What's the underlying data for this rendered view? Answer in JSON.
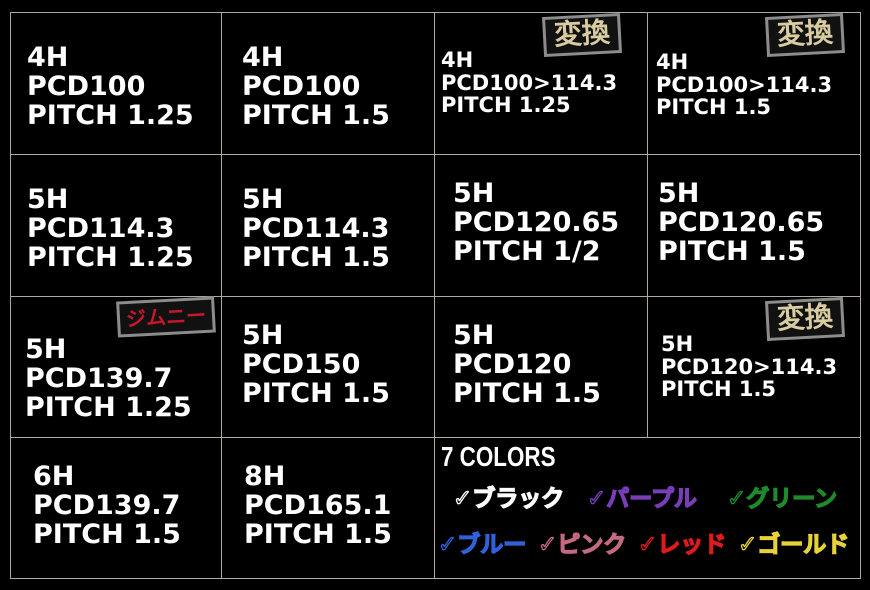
{
  "cells": [
    {
      "h": "4H",
      "pcd": "PCD100",
      "pitch": "PITCH 1.25"
    },
    {
      "h": "4H",
      "pcd": "PCD100",
      "pitch": "PITCH 1.5"
    },
    {
      "h": "4H",
      "pcd": "PCD100>114.3",
      "pitch": "PITCH 1.25",
      "badge": "変換"
    },
    {
      "h": "4H",
      "pcd": "PCD100>114.3",
      "pitch": "PITCH 1.5",
      "badge": "変換"
    },
    {
      "h": "5H",
      "pcd": "PCD114.3",
      "pitch": "PITCH 1.25"
    },
    {
      "h": "5H",
      "pcd": "PCD114.3",
      "pitch": "PITCH 1.5"
    },
    {
      "h": "5H",
      "pcd": "PCD120.65",
      "pitch": "PITCH 1/2"
    },
    {
      "h": "5H",
      "pcd": "PCD120.65",
      "pitch": "PITCH 1.5"
    },
    {
      "h": "5H",
      "pcd": "PCD139.7",
      "pitch": "PITCH 1.25",
      "badge": "ジムニー"
    },
    {
      "h": "5H",
      "pcd": "PCD150",
      "pitch": "PITCH 1.5"
    },
    {
      "h": "5H",
      "pcd": "PCD120",
      "pitch": "PITCH 1.5"
    },
    {
      "h": "5H",
      "pcd": "PCD120>114.3",
      "pitch": "PITCH 1.5",
      "badge": "変換"
    },
    {
      "h": "6H",
      "pcd": "PCD139.7",
      "pitch": "PITCH 1.5"
    },
    {
      "h": "8H",
      "pcd": "PCD165.1",
      "pitch": "PITCH 1.5"
    }
  ],
  "colors": {
    "title": "7 COLORS",
    "items": [
      {
        "label": "✓ブラック",
        "color": "#ffffff"
      },
      {
        "label": "✓パープル",
        "color": "#7a3db8"
      },
      {
        "label": "✓グリーン",
        "color": "#1f8a2a"
      },
      {
        "label": "✓ブルー",
        "color": "#2f62d8"
      },
      {
        "label": "✓ピンク",
        "color": "#c46a80"
      },
      {
        "label": "✓レッド",
        "color": "#e01a1a"
      },
      {
        "label": "✓ゴールド",
        "color": "#e8d23a"
      }
    ]
  }
}
